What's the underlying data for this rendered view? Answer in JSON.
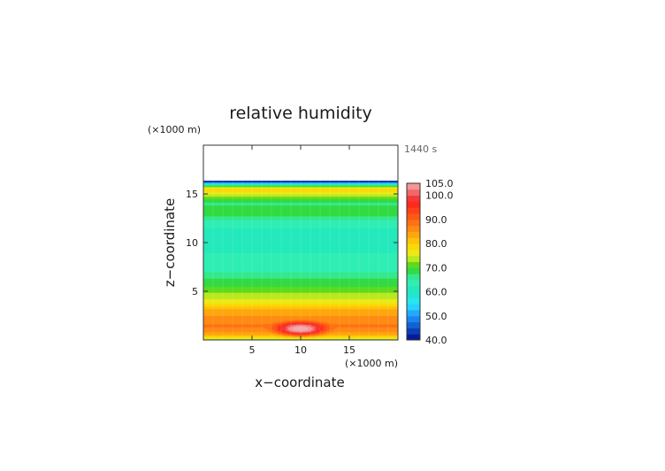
{
  "chart_data": {
    "type": "heatmap",
    "title": "relative humidity",
    "time_label": "1440 s",
    "xlabel": "x−coordinate",
    "ylabel": "z−coordinate",
    "x_unit": "(×1000 m)",
    "y_unit": "(×1000 m)",
    "xlim": [
      0,
      20
    ],
    "ylim": [
      0,
      20
    ],
    "x_ticks": [
      5,
      10,
      15
    ],
    "y_ticks": [
      5,
      10,
      15
    ],
    "x_tick_labels": [
      "5",
      "10",
      "15"
    ],
    "y_tick_labels": [
      "5",
      "10",
      "15"
    ],
    "colorbar": {
      "range": [
        40,
        105
      ],
      "step": 2.5,
      "labels": [
        "105.0",
        "100.0",
        "90.0",
        "80.0",
        "70.0",
        "60.0",
        "50.0",
        "40.0"
      ],
      "label_values": [
        105,
        100,
        90,
        80,
        70,
        60,
        50,
        40
      ],
      "stops": [
        {
          "value": 40,
          "color": "#000a8c"
        },
        {
          "value": 50,
          "color": "#1e96ff"
        },
        {
          "value": 55,
          "color": "#28e6ff"
        },
        {
          "value": 60,
          "color": "#1ee6c0"
        },
        {
          "value": 65,
          "color": "#34f0b0"
        },
        {
          "value": 70,
          "color": "#32d21e"
        },
        {
          "value": 75,
          "color": "#e6f020"
        },
        {
          "value": 80,
          "color": "#ffd200"
        },
        {
          "value": 85,
          "color": "#ff9614"
        },
        {
          "value": 90,
          "color": "#ff6414"
        },
        {
          "value": 97.5,
          "color": "#ff1e1e"
        },
        {
          "value": 100,
          "color": "#f05050"
        },
        {
          "value": 105,
          "color": "#f5aaaa"
        }
      ]
    },
    "profile_z": [
      0,
      0.2,
      0.5,
      1,
      1.5,
      2,
      2.5,
      3,
      3.5,
      4,
      4.5,
      5,
      5.5,
      6,
      6.5,
      7,
      8,
      9,
      10,
      11,
      12,
      12.5,
      13,
      13.5,
      14,
      14.5,
      15,
      15.5,
      15.9,
      16.2,
      16.35
    ],
    "profile_rh": [
      71,
      77,
      82,
      86,
      88,
      86,
      85,
      84,
      80,
      76,
      74,
      72,
      70,
      68.5,
      67,
      65,
      63.5,
      62.5,
      62,
      62,
      63,
      66,
      69,
      70,
      66.5,
      70,
      75,
      80,
      69,
      50,
      40
    ],
    "moist_bubble": {
      "x_center": 10,
      "z_center": 1.2,
      "half_width": 4,
      "half_height": 1.1,
      "peak_rh": 107
    }
  }
}
